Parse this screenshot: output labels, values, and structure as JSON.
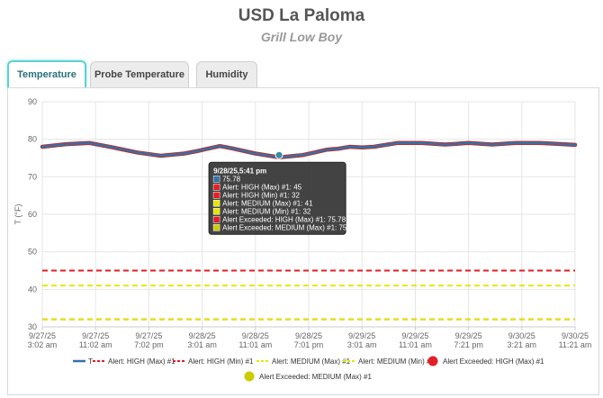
{
  "header": {
    "title": "USD La Paloma",
    "subtitle": "Grill Low Boy"
  },
  "tabs": [
    {
      "label": "Temperature",
      "active": true
    },
    {
      "label": "Probe Temperature",
      "active": false
    },
    {
      "label": "Humidity",
      "active": false
    }
  ],
  "colors": {
    "series": "#3a6fa5",
    "series_outline": "#b03030",
    "high": "#e31e24",
    "medium": "#e6e600",
    "grid": "#e6e6e6",
    "tooltip_bg": "#333333"
  },
  "chart_data": {
    "type": "line",
    "ylabel": "T (°F)",
    "ylim": [
      30,
      90
    ],
    "yticks": [
      30,
      40,
      50,
      60,
      70,
      80,
      90
    ],
    "x_ticks": [
      {
        "line1": "9/27/25",
        "line2": "3:02 am"
      },
      {
        "line1": "9/27/25",
        "line2": "11:02 am"
      },
      {
        "line1": "9/27/25",
        "line2": "7:02 pm"
      },
      {
        "line1": "9/28/25",
        "line2": "3:01 am"
      },
      {
        "line1": "9/28/25",
        "line2": "11:01 am"
      },
      {
        "line1": "9/28/25",
        "line2": "7:01 pm"
      },
      {
        "line1": "9/29/25",
        "line2": "3:01 am"
      },
      {
        "line1": "9/29/25",
        "line2": "11:01 am"
      },
      {
        "line1": "9/29/25",
        "line2": "7:21 pm"
      },
      {
        "line1": "9/30/25",
        "line2": "3:21 am"
      },
      {
        "line1": "9/30/25",
        "line2": "11:21 am"
      }
    ],
    "series": [
      {
        "name": "T",
        "x": [
          0,
          4,
          8,
          12,
          16,
          20,
          24,
          26,
          28,
          30,
          32,
          36,
          40,
          44,
          46,
          48,
          50,
          52,
          54,
          56,
          58,
          60,
          64,
          68,
          70,
          72,
          76,
          80,
          84,
          88,
          90
        ],
        "values": [
          78.0,
          78.7,
          79.0,
          77.8,
          76.5,
          75.6,
          76.2,
          76.8,
          77.5,
          78.2,
          77.6,
          76.2,
          75.2,
          75.8,
          76.5,
          77.2,
          77.5,
          78.0,
          77.8,
          78.0,
          78.5,
          79.0,
          79.0,
          78.6,
          78.8,
          79.0,
          78.6,
          79.0,
          79.0,
          78.7,
          78.5
        ]
      }
    ],
    "thresholds": [
      {
        "name": "Alert: HIGH (Max)  #1",
        "value": 45,
        "color": "#e31e24"
      },
      {
        "name": "Alert: HIGH (Min)  #1",
        "value": 32,
        "color": "#e31e24"
      },
      {
        "name": "Alert: MEDIUM (Max)  #1",
        "value": 41,
        "color": "#e6e600"
      },
      {
        "name": "Alert: MEDIUM (Min)  #1",
        "value": 32,
        "color": "#e6e600"
      }
    ],
    "legend": [
      {
        "label": "T",
        "kind": "line",
        "color": "#3a6fa5"
      },
      {
        "label": "Alert: HIGH (Max)  #1",
        "kind": "dash",
        "color": "#e31e24"
      },
      {
        "label": "Alert: HIGH (Min)  #1",
        "kind": "dash",
        "color": "#e31e24"
      },
      {
        "label": "Alert: MEDIUM (Max)  #1",
        "kind": "dash",
        "color": "#e6e600"
      },
      {
        "label": "Alert: MEDIUM (Min)  #1",
        "kind": "dash",
        "color": "#e6e600"
      },
      {
        "label": "Alert Exceeded: HIGH (Max)  #1",
        "kind": "dot",
        "color": "#e31e24"
      },
      {
        "label": "Alert Exceeded: MEDIUM (Max)  #1",
        "kind": "dot",
        "color": "#cccc00"
      }
    ],
    "tooltip": {
      "x": 40,
      "y": 75.78,
      "header": "9/28/25,5:41 pm",
      "rows": [
        {
          "color": "#3a6fa5",
          "text": "75.78"
        },
        {
          "color": "#e31e24",
          "text": "Alert: HIGH (Max)  #1: 45"
        },
        {
          "color": "#e31e24",
          "text": "Alert: HIGH (Min)  #1: 32"
        },
        {
          "color": "#e6e600",
          "text": "Alert: MEDIUM (Max)  #1: 41"
        },
        {
          "color": "#e6e600",
          "text": "Alert: MEDIUM (Min)  #1: 32"
        },
        {
          "color": "#e31e24",
          "text": "Alert Exceeded: HIGH (Max)  #1: 75.78"
        },
        {
          "color": "#cccc00",
          "text": "Alert Exceeded: MEDIUM (Max)  #1: 75.78"
        }
      ]
    }
  }
}
